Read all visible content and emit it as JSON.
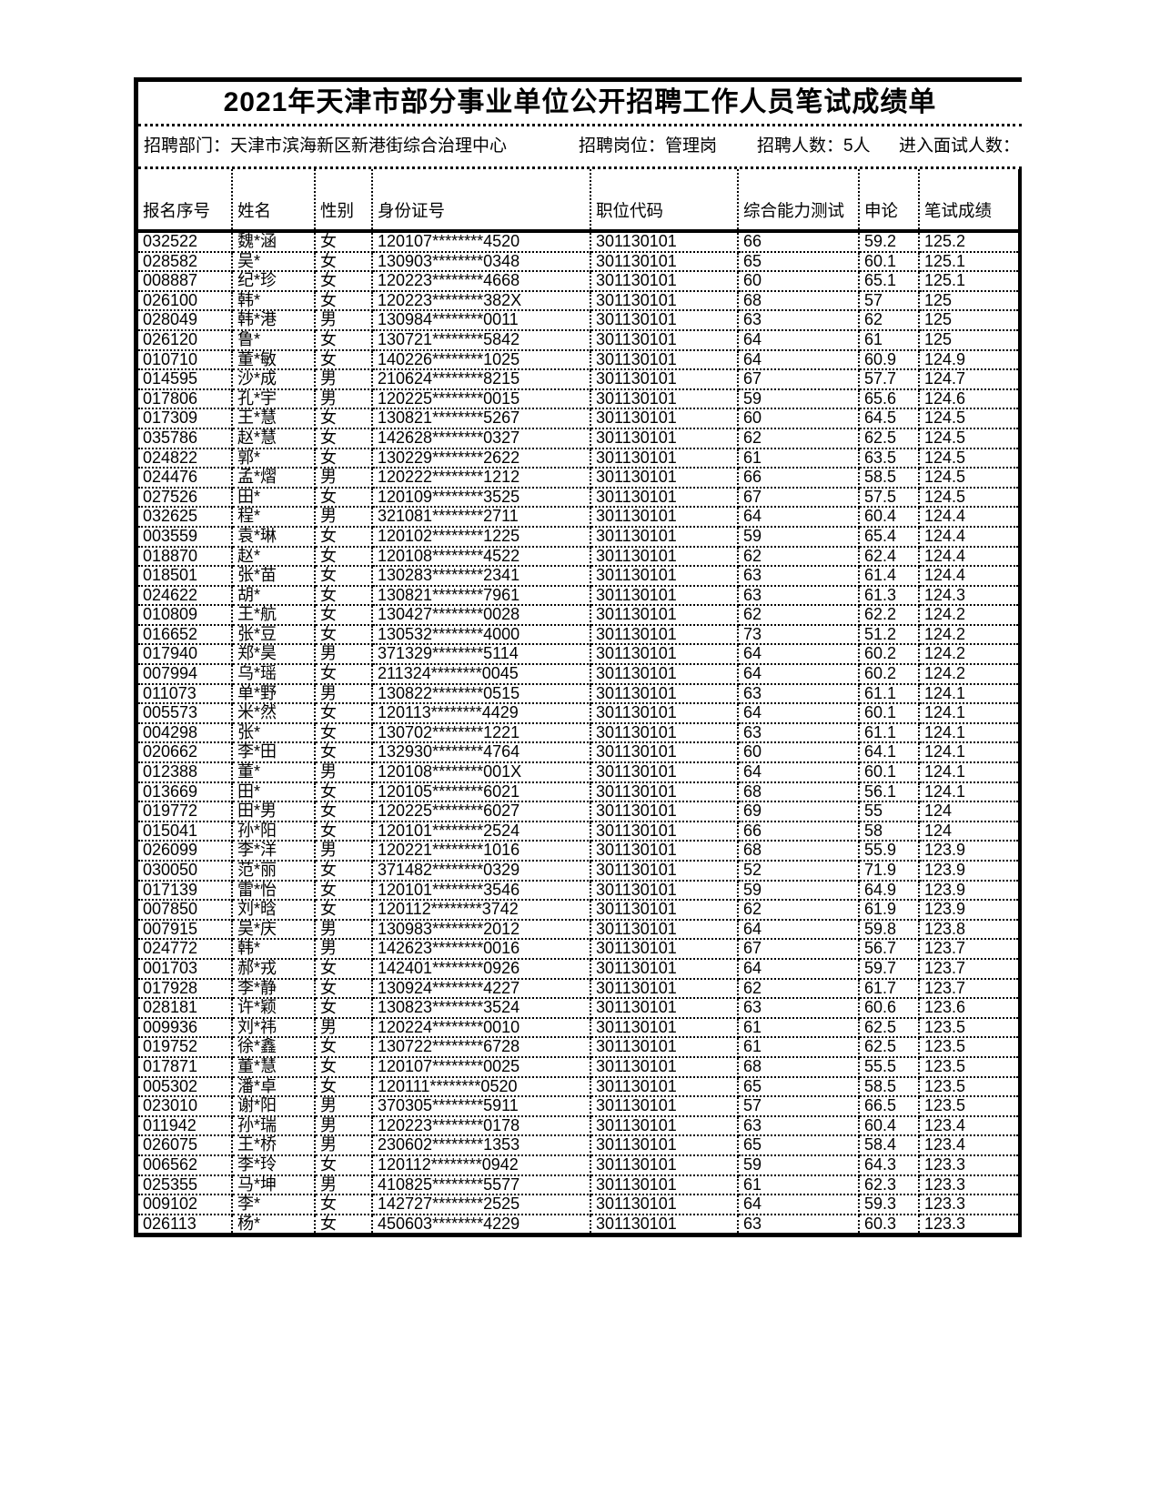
{
  "title": "2021年天津市部分事业单位公开招聘工作人员笔试成绩单",
  "info": {
    "department": "招聘部门：天津市滨海新区新港街综合治理中心",
    "position": "招聘岗位：管理岗",
    "headcount": "招聘人数：5人",
    "interview_count": "进入面试人数："
  },
  "table": {
    "columns": [
      "报名序号",
      "姓名",
      "性别",
      "身份证号",
      "职位代码",
      "综合能力测试",
      "申论",
      "笔试成绩"
    ],
    "rows": [
      [
        "032522",
        "魏*涵",
        "女",
        "120107********4520",
        "301130101",
        "66",
        "59.2",
        "125.2"
      ],
      [
        "028582",
        "吴*",
        "女",
        "130903********0348",
        "301130101",
        "65",
        "60.1",
        "125.1"
      ],
      [
        "008887",
        "纪*珍",
        "女",
        "120223********4668",
        "301130101",
        "60",
        "65.1",
        "125.1"
      ],
      [
        "026100",
        "韩*",
        "女",
        "120223********382X",
        "301130101",
        "68",
        "57",
        "125"
      ],
      [
        "028049",
        "韩*港",
        "男",
        "130984********0011",
        "301130101",
        "63",
        "62",
        "125"
      ],
      [
        "026120",
        "鲁*",
        "女",
        "130721********5842",
        "301130101",
        "64",
        "61",
        "125"
      ],
      [
        "010710",
        "董*敏",
        "女",
        "140226********1025",
        "301130101",
        "64",
        "60.9",
        "124.9"
      ],
      [
        "014595",
        "沙*成",
        "男",
        "210624********8215",
        "301130101",
        "67",
        "57.7",
        "124.7"
      ],
      [
        "017806",
        "孔*宇",
        "男",
        "120225********0015",
        "301130101",
        "59",
        "65.6",
        "124.6"
      ],
      [
        "017309",
        "王*慧",
        "女",
        "130821********5267",
        "301130101",
        "60",
        "64.5",
        "124.5"
      ],
      [
        "035786",
        "赵*慧",
        "女",
        "142628********0327",
        "301130101",
        "62",
        "62.5",
        "124.5"
      ],
      [
        "024822",
        "郭*",
        "女",
        "130229********2622",
        "301130101",
        "61",
        "63.5",
        "124.5"
      ],
      [
        "024476",
        "孟*熠",
        "男",
        "120222********1212",
        "301130101",
        "66",
        "58.5",
        "124.5"
      ],
      [
        "027526",
        "田*",
        "女",
        "120109********3525",
        "301130101",
        "67",
        "57.5",
        "124.5"
      ],
      [
        "032625",
        "程*",
        "男",
        "321081********2711",
        "301130101",
        "64",
        "60.4",
        "124.4"
      ],
      [
        "003559",
        "袁*琳",
        "女",
        "120102********1225",
        "301130101",
        "59",
        "65.4",
        "124.4"
      ],
      [
        "018870",
        "赵*",
        "女",
        "120108********4522",
        "301130101",
        "62",
        "62.4",
        "124.4"
      ],
      [
        "018501",
        "张*苗",
        "女",
        "130283********2341",
        "301130101",
        "63",
        "61.4",
        "124.4"
      ],
      [
        "024622",
        "胡*",
        "女",
        "130821********7961",
        "301130101",
        "63",
        "61.3",
        "124.3"
      ],
      [
        "010809",
        "王*航",
        "女",
        "130427********0028",
        "301130101",
        "62",
        "62.2",
        "124.2"
      ],
      [
        "016652",
        "张*豆",
        "女",
        "130532********4000",
        "301130101",
        "73",
        "51.2",
        "124.2"
      ],
      [
        "017940",
        "郑*昊",
        "男",
        "371329********5114",
        "301130101",
        "64",
        "60.2",
        "124.2"
      ],
      [
        "007994",
        "乌*瑶",
        "女",
        "211324********0045",
        "301130101",
        "64",
        "60.2",
        "124.2"
      ],
      [
        "011073",
        "单*野",
        "男",
        "130822********0515",
        "301130101",
        "63",
        "61.1",
        "124.1"
      ],
      [
        "005573",
        "米*然",
        "女",
        "120113********4429",
        "301130101",
        "64",
        "60.1",
        "124.1"
      ],
      [
        "004298",
        "张*",
        "女",
        "130702********1221",
        "301130101",
        "63",
        "61.1",
        "124.1"
      ],
      [
        "020662",
        "李*田",
        "女",
        "132930********4764",
        "301130101",
        "60",
        "64.1",
        "124.1"
      ],
      [
        "012388",
        "董*",
        "男",
        "120108********001X",
        "301130101",
        "64",
        "60.1",
        "124.1"
      ],
      [
        "013669",
        "田*",
        "女",
        "120105********6021",
        "301130101",
        "68",
        "56.1",
        "124.1"
      ],
      [
        "019772",
        "田*男",
        "女",
        "120225********6027",
        "301130101",
        "69",
        "55",
        "124"
      ],
      [
        "015041",
        "孙*阳",
        "女",
        "120101********2524",
        "301130101",
        "66",
        "58",
        "124"
      ],
      [
        "026099",
        "李*洋",
        "男",
        "120221********1016",
        "301130101",
        "68",
        "55.9",
        "123.9"
      ],
      [
        "030050",
        "范*丽",
        "女",
        "371482********0329",
        "301130101",
        "52",
        "71.9",
        "123.9"
      ],
      [
        "017139",
        "雷*怡",
        "女",
        "120101********3546",
        "301130101",
        "59",
        "64.9",
        "123.9"
      ],
      [
        "007850",
        "刘*晗",
        "女",
        "120112********3742",
        "301130101",
        "62",
        "61.9",
        "123.9"
      ],
      [
        "007915",
        "吴*庆",
        "男",
        "130983********2012",
        "301130101",
        "64",
        "59.8",
        "123.8"
      ],
      [
        "024772",
        "韩*",
        "男",
        "142623********0016",
        "301130101",
        "67",
        "56.7",
        "123.7"
      ],
      [
        "001703",
        "郝*戎",
        "女",
        "142401********0926",
        "301130101",
        "64",
        "59.7",
        "123.7"
      ],
      [
        "017928",
        "李*静",
        "女",
        "130924********4227",
        "301130101",
        "62",
        "61.7",
        "123.7"
      ],
      [
        "028181",
        "许*颖",
        "女",
        "130823********3524",
        "301130101",
        "63",
        "60.6",
        "123.6"
      ],
      [
        "009936",
        "刘*祎",
        "男",
        "120224********0010",
        "301130101",
        "61",
        "62.5",
        "123.5"
      ],
      [
        "019752",
        "徐*鑫",
        "女",
        "130722********6728",
        "301130101",
        "61",
        "62.5",
        "123.5"
      ],
      [
        "017871",
        "董*慧",
        "女",
        "120107********0025",
        "301130101",
        "68",
        "55.5",
        "123.5"
      ],
      [
        "005302",
        "潘*卓",
        "女",
        "120111********0520",
        "301130101",
        "65",
        "58.5",
        "123.5"
      ],
      [
        "023010",
        "谢*阳",
        "男",
        "370305********5911",
        "301130101",
        "57",
        "66.5",
        "123.5"
      ],
      [
        "011942",
        "孙*瑞",
        "男",
        "120223********0178",
        "301130101",
        "63",
        "60.4",
        "123.4"
      ],
      [
        "026075",
        "王*桥",
        "男",
        "230602********1353",
        "301130101",
        "65",
        "58.4",
        "123.4"
      ],
      [
        "006562",
        "李*玲",
        "女",
        "120112********0942",
        "301130101",
        "59",
        "64.3",
        "123.3"
      ],
      [
        "025355",
        "马*坤",
        "男",
        "410825********5577",
        "301130101",
        "61",
        "62.3",
        "123.3"
      ],
      [
        "009102",
        "李*",
        "女",
        "142727********2525",
        "301130101",
        "64",
        "59.3",
        "123.3"
      ],
      [
        "026113",
        "杨*",
        "女",
        "450603********4229",
        "301130101",
        "63",
        "60.3",
        "123.3"
      ]
    ]
  }
}
